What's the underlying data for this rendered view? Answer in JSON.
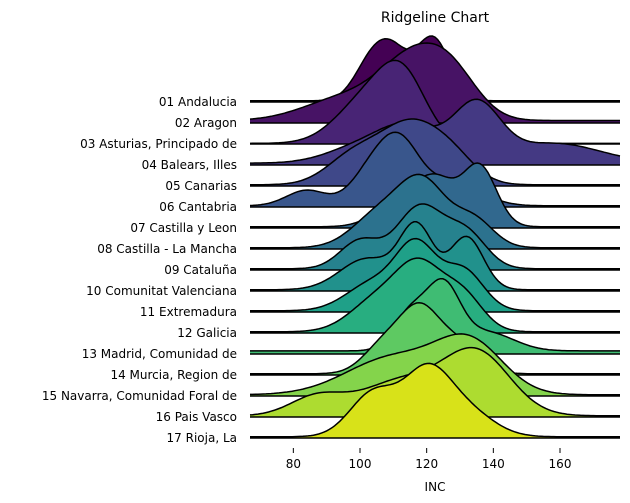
{
  "chart_data": {
    "type": "ridgeline",
    "title": "Ridgeline Chart",
    "xlabel": "INC",
    "ylabel": "",
    "xlim": [
      67,
      178
    ],
    "xticks": [
      80,
      100,
      120,
      140,
      160
    ],
    "grid": false,
    "colormap": "viridis",
    "series": [
      {
        "name": "01 Andalucia",
        "color": "#440154",
        "peaks": [
          [
            103,
            5,
            0.55
          ],
          [
            110,
            5,
            0.7
          ],
          [
            122,
            5,
            1.0
          ]
        ],
        "base": 0.02
      },
      {
        "name": "02 Aragon",
        "color": "#471365",
        "peaks": [
          [
            95,
            12,
            0.35
          ],
          [
            116,
            10,
            0.95
          ],
          [
            128,
            8,
            0.55
          ]
        ],
        "base": 0.04
      },
      {
        "name": "03 Asturias, Principado de",
        "color": "#482475",
        "peaks": [
          [
            102,
            9,
            0.7
          ],
          [
            113,
            7,
            0.95
          ]
        ],
        "base": 0.01
      },
      {
        "name": "04 Balears, Illes",
        "color": "#443983",
        "peaks": [
          [
            100,
            10,
            0.25
          ],
          [
            115,
            9,
            0.55
          ],
          [
            135,
            7,
            0.9
          ],
          [
            158,
            14,
            0.32
          ]
        ],
        "base": 0.03
      },
      {
        "name": "05 Canarias",
        "color": "#3f4889",
        "peaks": [
          [
            98,
            8,
            0.45
          ],
          [
            115,
            9,
            0.95
          ],
          [
            128,
            7,
            0.35
          ]
        ],
        "base": 0.02
      },
      {
        "name": "06 Cantabria",
        "color": "#39568c",
        "peaks": [
          [
            84,
            6,
            0.25
          ],
          [
            103,
            6,
            0.5
          ],
          [
            112,
            6,
            0.95
          ],
          [
            128,
            8,
            0.4
          ]
        ],
        "base": 0.02
      },
      {
        "name": "07 Castilla y Leon",
        "color": "#31688e",
        "peaks": [
          [
            112,
            7,
            0.4
          ],
          [
            123,
            6,
            0.7
          ],
          [
            136,
            5,
            0.95
          ]
        ],
        "base": 0.02
      },
      {
        "name": "08 Castilla - La Mancha",
        "color": "#2c728e",
        "peaks": [
          [
            106,
            8,
            0.55
          ],
          [
            119,
            7,
            1.0
          ],
          [
            134,
            6,
            0.45
          ]
        ],
        "base": 0.02
      },
      {
        "name": "09 Cataluña",
        "color": "#26828e",
        "peaks": [
          [
            100,
            6,
            0.45
          ],
          [
            118,
            7,
            1.0
          ],
          [
            132,
            6,
            0.55
          ]
        ],
        "base": 0.02
      },
      {
        "name": "10 Comunitat Valenciana",
        "color": "#21918c",
        "peaks": [
          [
            102,
            8,
            0.5
          ],
          [
            117,
            5,
            1.0
          ],
          [
            132,
            5,
            0.85
          ]
        ],
        "base": 0.02
      },
      {
        "name": "11 Extremadura",
        "color": "#1fa088",
        "peaks": [
          [
            104,
            8,
            0.45
          ],
          [
            117,
            6,
            1.0
          ],
          [
            131,
            6,
            0.65
          ]
        ],
        "base": 0.02
      },
      {
        "name": "12 Galicia",
        "color": "#28ae80",
        "peaks": [
          [
            105,
            8,
            0.5
          ],
          [
            118,
            7,
            1.0
          ],
          [
            131,
            6,
            0.55
          ]
        ],
        "base": 0.02
      },
      {
        "name": "13 Madrid, Comunidad de",
        "color": "#3fbc73",
        "peaks": [
          [
            115,
            5,
            0.6
          ],
          [
            125,
            5,
            1.0
          ],
          [
            138,
            8,
            0.3
          ]
        ],
        "base": 0.05
      },
      {
        "name": "14 Murcia, Region de",
        "color": "#5ec962",
        "peaks": [
          [
            107,
            6,
            0.45
          ],
          [
            118,
            6,
            1.0
          ],
          [
            130,
            6,
            0.45
          ]
        ],
        "base": 0.02
      },
      {
        "name": "15 Navarra, Comunidad Foral de",
        "color": "#84d44b",
        "peaks": [
          [
            110,
            14,
            0.6
          ],
          [
            133,
            10,
            0.8
          ]
        ],
        "base": 0.02
      },
      {
        "name": "16 Pais Vasco",
        "color": "#addc30",
        "peaks": [
          [
            87,
            8,
            0.3
          ],
          [
            112,
            12,
            0.55
          ],
          [
            135,
            10,
            1.0
          ]
        ],
        "base": 0.02
      },
      {
        "name": "17 Rioja, La",
        "color": "#d8e219",
        "peaks": [
          [
            104,
            7,
            0.7
          ],
          [
            120,
            7,
            1.0
          ],
          [
            132,
            8,
            0.4
          ]
        ],
        "base": 0.02
      }
    ]
  }
}
